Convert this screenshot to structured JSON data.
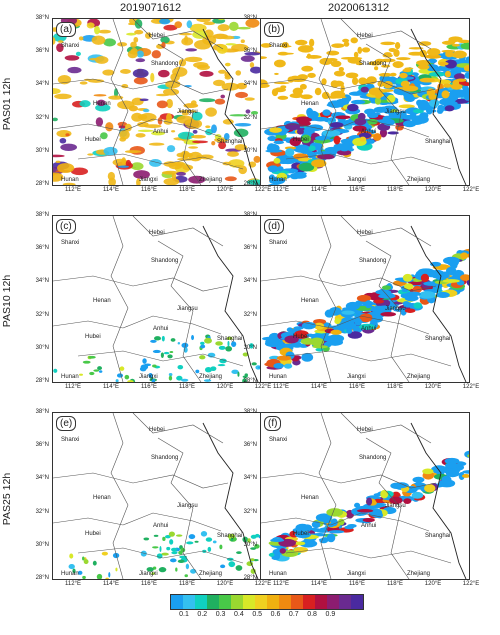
{
  "columns": [
    "2019071612",
    "2020061312"
  ],
  "rows": [
    "PAS01 12h",
    "PAS10 12h",
    "PAS25 12h"
  ],
  "panels": [
    "(a)",
    "(b)",
    "(c)",
    "(d)",
    "(e)",
    "(f)"
  ],
  "lat_ticks": [
    "38°N",
    "36°N",
    "34°N",
    "32°N",
    "30°N",
    "28°N"
  ],
  "lon_ticks": [
    "112°E",
    "114°E",
    "116°E",
    "118°E",
    "120°E",
    "122°E"
  ],
  "provinces": {
    "shanxi": "Shanxi",
    "hebei": "Hebei",
    "shandong": "Shandong",
    "henan": "Henan",
    "jiangsu": "Jiangsu",
    "anhui": "Anhui",
    "hubei": "Hubei",
    "shanghai": "Shanghai",
    "hunan": "Hunan",
    "jiangxi": "Jiangxi",
    "zhejiang": "Zhejiang"
  },
  "colorbar": {
    "colors": [
      "#1a9ff0",
      "#34c0f0",
      "#10d0c0",
      "#20b060",
      "#48c848",
      "#9ad830",
      "#d8e828",
      "#f0d020",
      "#f0b010",
      "#f08a10",
      "#e85818",
      "#d82020",
      "#b01040",
      "#8c1c70",
      "#6a2a90",
      "#4a2aa0"
    ],
    "labels": [
      "0.1",
      "0.2",
      "0.3",
      "0.4",
      "0.5",
      "0.6",
      "0.7",
      "0.8",
      "0.9"
    ]
  }
}
